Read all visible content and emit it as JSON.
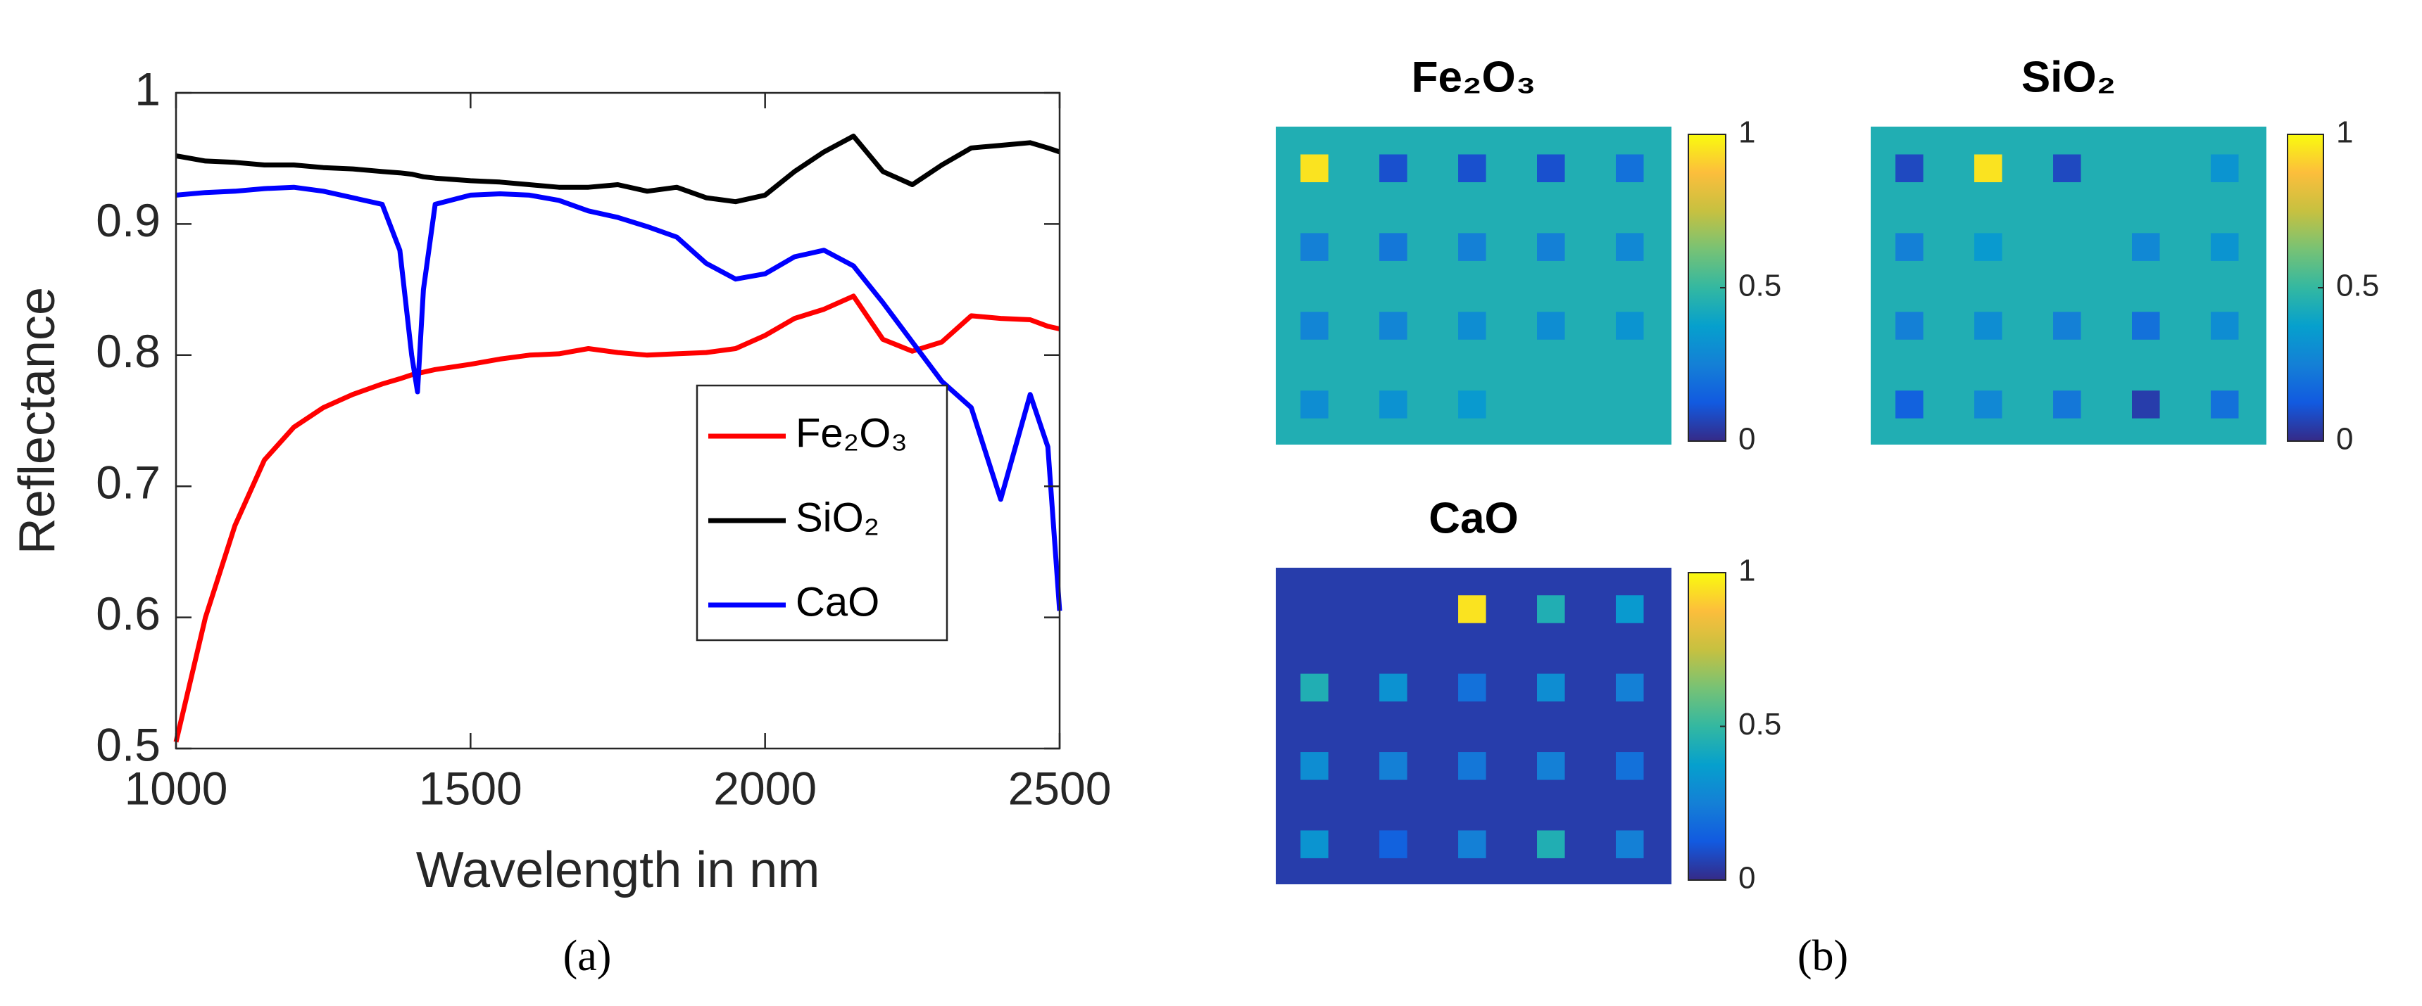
{
  "chart_data": [
    {
      "type": "line",
      "xlabel": "Wavelength in nm",
      "ylabel": "Reflectance",
      "x": [
        1000,
        1050,
        1100,
        1150,
        1200,
        1250,
        1300,
        1350,
        1380,
        1400,
        1410,
        1420,
        1440,
        1500,
        1550,
        1600,
        1650,
        1700,
        1750,
        1800,
        1850,
        1900,
        1950,
        2000,
        2050,
        2100,
        2150,
        2200,
        2250,
        2300,
        2350,
        2400,
        2450,
        2480,
        2500
      ],
      "series": [
        {
          "name": "Fe₂O₃",
          "color": "#ff0000",
          "values": [
            0.505,
            0.6,
            0.67,
            0.72,
            0.745,
            0.76,
            0.77,
            0.778,
            0.782,
            0.785,
            0.786,
            0.787,
            0.789,
            0.793,
            0.797,
            0.8,
            0.801,
            0.805,
            0.802,
            0.8,
            0.801,
            0.802,
            0.805,
            0.815,
            0.828,
            0.835,
            0.845,
            0.812,
            0.803,
            0.81,
            0.83,
            0.828,
            0.827,
            0.822,
            0.82
          ]
        },
        {
          "name": "SiO₂",
          "color": "#000000",
          "values": [
            0.952,
            0.948,
            0.947,
            0.945,
            0.945,
            0.943,
            0.942,
            0.94,
            0.939,
            0.938,
            0.937,
            0.936,
            0.935,
            0.933,
            0.932,
            0.93,
            0.928,
            0.928,
            0.93,
            0.925,
            0.928,
            0.92,
            0.917,
            0.922,
            0.94,
            0.955,
            0.967,
            0.94,
            0.93,
            0.945,
            0.958,
            0.96,
            0.962,
            0.958,
            0.955
          ]
        },
        {
          "name": "CaO",
          "color": "#0000ff",
          "values": [
            0.922,
            0.924,
            0.925,
            0.927,
            0.928,
            0.925,
            0.92,
            0.915,
            0.88,
            0.8,
            0.772,
            0.85,
            0.915,
            0.922,
            0.923,
            0.922,
            0.918,
            0.91,
            0.905,
            0.898,
            0.89,
            0.87,
            0.858,
            0.862,
            0.875,
            0.88,
            0.868,
            0.84,
            0.81,
            0.78,
            0.76,
            0.69,
            0.77,
            0.73,
            0.605
          ]
        }
      ],
      "xlim": [
        1000,
        2500
      ],
      "xticks": [
        1000,
        1500,
        2000,
        2500
      ],
      "ylim": [
        0.5,
        1
      ],
      "yticks": [
        0.5,
        0.6,
        0.7,
        0.8,
        0.9,
        1
      ]
    },
    {
      "type": "heatmap",
      "title": "Fe₂O₃",
      "colormap": "parula",
      "clim": [
        0,
        1
      ],
      "cticks": [
        0,
        0.5,
        1
      ],
      "background": 0.45,
      "values": [
        [
          0.95,
          0.1,
          0.1,
          0.1,
          0.2
        ],
        [
          0.25,
          0.22,
          0.25,
          0.25,
          0.28
        ],
        [
          0.27,
          0.27,
          0.3,
          0.3,
          0.33
        ],
        [
          0.3,
          0.32,
          0.35,
          null,
          null
        ]
      ]
    },
    {
      "type": "heatmap",
      "title": "SiO₂",
      "colormap": "parula",
      "clim": [
        0,
        1
      ],
      "cticks": [
        0,
        0.5,
        1
      ],
      "background": 0.45,
      "values": [
        [
          0.08,
          0.95,
          0.08,
          null,
          0.33
        ],
        [
          0.25,
          0.35,
          null,
          0.28,
          0.33
        ],
        [
          0.25,
          0.3,
          0.25,
          0.2,
          0.3
        ],
        [
          0.15,
          0.28,
          0.22,
          0.05,
          0.2
        ]
      ]
    },
    {
      "type": "heatmap",
      "title": "CaO",
      "colormap": "parula",
      "clim": [
        0,
        1
      ],
      "cticks": [
        0,
        0.5,
        1
      ],
      "background": 0.05,
      "values": [
        [
          null,
          null,
          0.95,
          0.45,
          0.35
        ],
        [
          0.45,
          0.32,
          0.2,
          0.3,
          0.25
        ],
        [
          0.3,
          0.25,
          0.22,
          0.25,
          0.2
        ],
        [
          0.33,
          0.15,
          0.25,
          0.45,
          0.25
        ]
      ]
    }
  ],
  "captions": [
    "(a)",
    "(b)"
  ]
}
